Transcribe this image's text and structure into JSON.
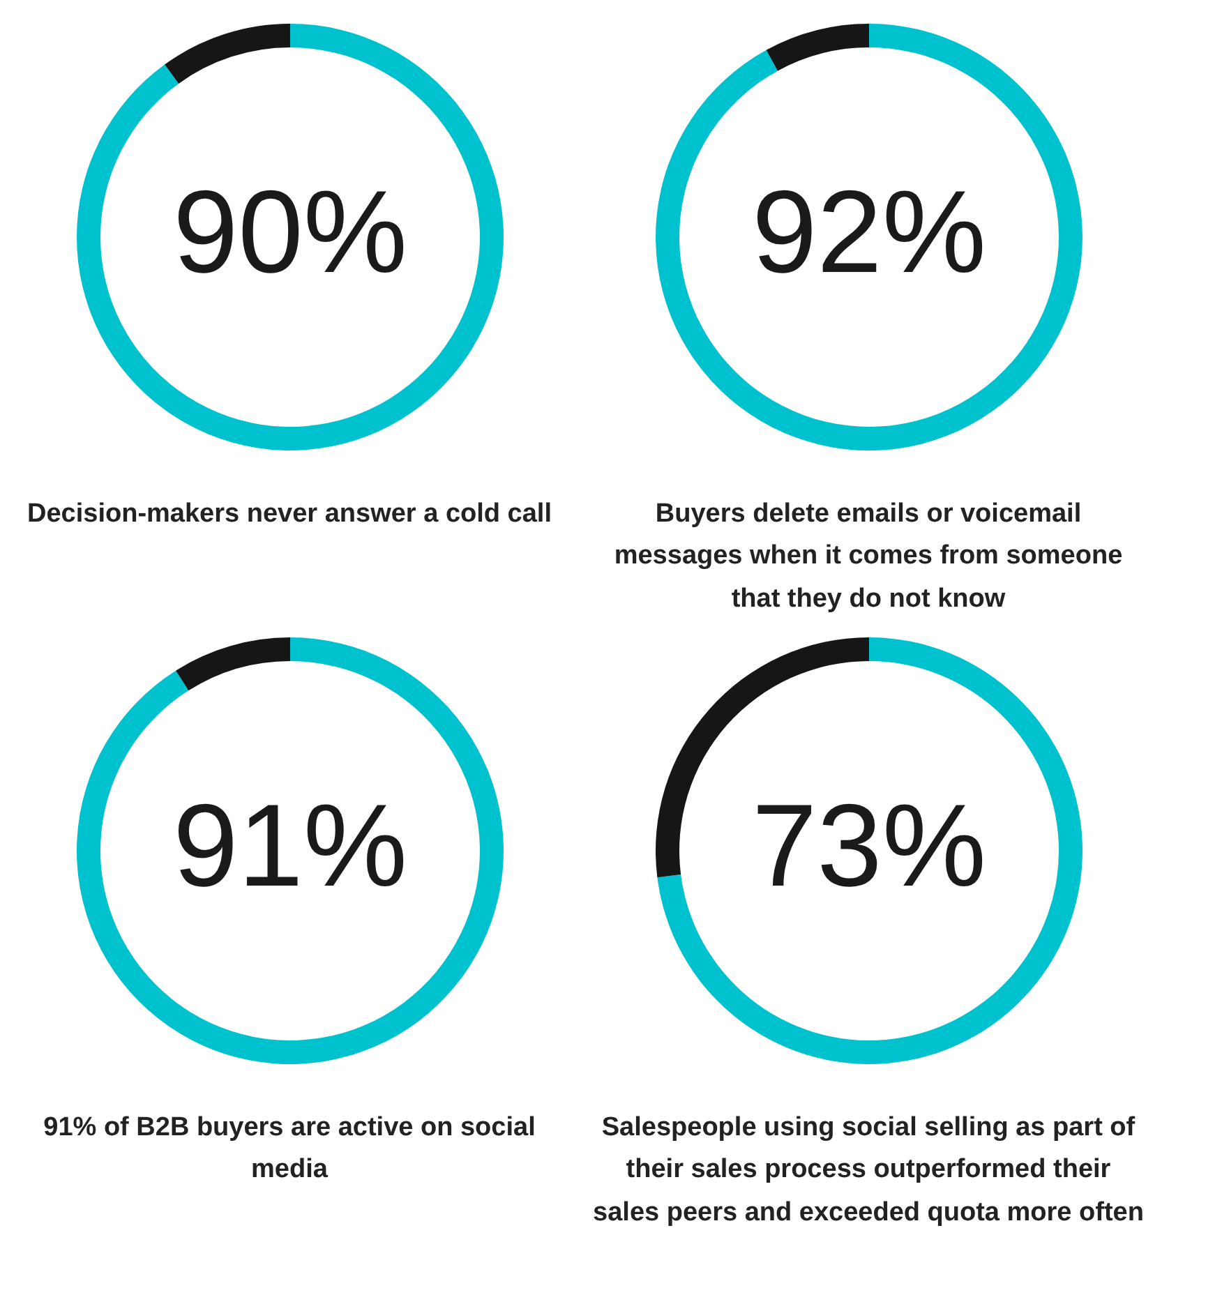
{
  "chart_data": [
    {
      "type": "donut",
      "categories": [
        null,
        null
      ],
      "values": [
        90,
        10
      ],
      "colors": [
        "#00c2cf",
        "#161616"
      ],
      "value_labels": [
        "90%",
        null
      ],
      "annotations": [
        "Decision-makers never answer a cold call"
      ]
    },
    {
      "type": "donut",
      "categories": [
        null,
        null
      ],
      "values": [
        92,
        8
      ],
      "colors": [
        "#00c2cf",
        "#161616"
      ],
      "value_labels": [
        "92%",
        null
      ],
      "annotations": [
        "Buyers delete emails or voicemail messages when it comes from someone that they do not know"
      ]
    },
    {
      "type": "donut",
      "categories": [
        null,
        null
      ],
      "values": [
        91,
        9
      ],
      "colors": [
        "#00c2cf",
        "#161616"
      ],
      "value_labels": [
        "91%",
        null
      ],
      "annotations": [
        "91% of B2B buyers are active on social media"
      ]
    },
    {
      "type": "donut",
      "categories": [
        null,
        null
      ],
      "values": [
        73,
        27
      ],
      "colors": [
        "#00c2cf",
        "#161616"
      ],
      "value_labels": [
        "73%",
        null
      ],
      "annotations": [
        "Salespeople using social selling as part of their sales process outperformed their sales peers and exceeded quota more often"
      ]
    }
  ]
}
